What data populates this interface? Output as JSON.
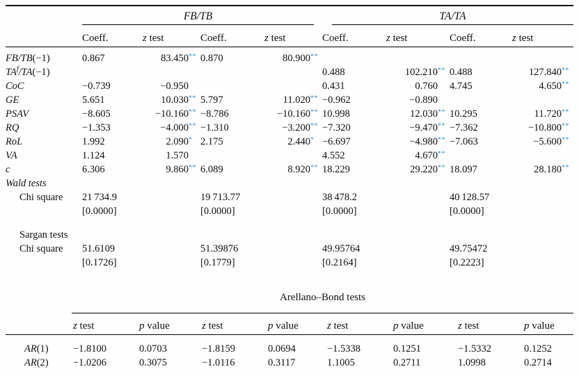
{
  "page": {
    "background": "#fefefe",
    "text_color": "#0e0e0e",
    "rule_color": "#000000",
    "star_color": "#3a92ce"
  },
  "main_table": {
    "group_headers": [
      "FB/TB",
      "TA/TA"
    ],
    "col_headers": [
      {
        "it": "",
        "t": "Coeff."
      },
      {
        "it": "z",
        "t": " test"
      },
      {
        "it": "",
        "t": "Coeff."
      },
      {
        "it": "z",
        "t": " test"
      },
      {
        "it": "",
        "t": "Coeff."
      },
      {
        "it": "z",
        "t": " test"
      },
      {
        "it": "",
        "t": "Coeff."
      },
      {
        "it": "z",
        "t": " test"
      }
    ],
    "rows": [
      {
        "type": "data",
        "label": [
          {
            "t": "FB/TB",
            "st": "i"
          },
          {
            "t": "(−1)",
            "st": "r"
          }
        ],
        "cells": [
          {
            "t": "0.867"
          },
          {
            "t": "83.450",
            "s": "**"
          },
          {
            "t": "0.870"
          },
          {
            "t": "80.900",
            "s": "**"
          },
          {},
          {},
          {},
          {}
        ]
      },
      {
        "type": "data",
        "label": [
          {
            "t": "TA",
            "st": "i"
          },
          {
            "t": "f",
            "st": "sup"
          },
          {
            "t": "/TA",
            "st": "i"
          },
          {
            "t": "(−1)",
            "st": "r"
          }
        ],
        "cells": [
          {},
          {},
          {},
          {},
          {
            "t": "0.488"
          },
          {
            "t": "102.210",
            "s": "**"
          },
          {
            "t": "0.488"
          },
          {
            "t": "127.840",
            "s": "**"
          }
        ]
      },
      {
        "type": "data",
        "label": [
          {
            "t": "CoC",
            "st": "i"
          }
        ],
        "cells": [
          {
            "t": "−0.739"
          },
          {
            "t": "−0.950"
          },
          {},
          {},
          {
            "t": "0.431"
          },
          {
            "t": "0.760"
          },
          {
            "t": "4.745"
          },
          {
            "t": "4.650",
            "s": "**"
          }
        ]
      },
      {
        "type": "data",
        "label": [
          {
            "t": "GE",
            "st": "i"
          }
        ],
        "cells": [
          {
            "t": "5.651"
          },
          {
            "t": "10.030",
            "s": "**"
          },
          {
            "t": "5.797"
          },
          {
            "t": "11.020",
            "s": "**"
          },
          {
            "t": "−0.962"
          },
          {
            "t": "−0.890"
          },
          {},
          {}
        ]
      },
      {
        "type": "data",
        "label": [
          {
            "t": "PSAV",
            "st": "i"
          }
        ],
        "cells": [
          {
            "t": "−8.605"
          },
          {
            "t": "−10.160",
            "s": "**"
          },
          {
            "t": "−8.786"
          },
          {
            "t": "−10.160",
            "s": "**"
          },
          {
            "t": "10.998"
          },
          {
            "t": "12.030",
            "s": "**"
          },
          {
            "t": "10.295"
          },
          {
            "t": "11.720",
            "s": "**"
          }
        ]
      },
      {
        "type": "data",
        "label": [
          {
            "t": "RQ",
            "st": "i"
          }
        ],
        "cells": [
          {
            "t": "−1.353"
          },
          {
            "t": "−4.000",
            "s": "**"
          },
          {
            "t": "−1.310"
          },
          {
            "t": "−3.200",
            "s": "**"
          },
          {
            "t": "−7.320"
          },
          {
            "t": "−9.470",
            "s": "**"
          },
          {
            "t": "−7.362"
          },
          {
            "t": "−10.800",
            "s": "**"
          }
        ]
      },
      {
        "type": "data",
        "label": [
          {
            "t": "RoL",
            "st": "i"
          }
        ],
        "cells": [
          {
            "t": "1.992"
          },
          {
            "t": "2.090",
            "s": "*"
          },
          {
            "t": "2.175"
          },
          {
            "t": "2.440",
            "s": "*"
          },
          {
            "t": "−6.697"
          },
          {
            "t": "−4.980",
            "s": "**"
          },
          {
            "t": "−7.063"
          },
          {
            "t": "−5.600",
            "s": "**"
          }
        ]
      },
      {
        "type": "data",
        "label": [
          {
            "t": "VA",
            "st": "i"
          }
        ],
        "cells": [
          {
            "t": "1.124"
          },
          {
            "t": "1.570"
          },
          {},
          {},
          {
            "t": "4.552"
          },
          {
            "t": "4.670",
            "s": "**"
          },
          {},
          {}
        ]
      },
      {
        "type": "data",
        "label": [
          {
            "t": "c",
            "st": "i"
          }
        ],
        "cells": [
          {
            "t": "6.306"
          },
          {
            "t": "9.860",
            "s": "**"
          },
          {
            "t": "6.089"
          },
          {
            "t": "8.920",
            "s": "**"
          },
          {
            "t": "18.229"
          },
          {
            "t": "29.220",
            "s": "**"
          },
          {
            "t": "18.097"
          },
          {
            "t": "28.180",
            "s": "**"
          }
        ]
      },
      {
        "type": "section",
        "label": [
          {
            "t": "Wald tests",
            "st": "i"
          }
        ]
      },
      {
        "type": "stat",
        "indent": true,
        "label": [
          {
            "t": "Chi square",
            "st": "r"
          }
        ],
        "cells": [
          {
            "t": "21 734.9"
          },
          {},
          {
            "t": "19 713.77"
          },
          {},
          {
            "t": "38 478.2"
          },
          {},
          {
            "t": "40 128.57"
          },
          {}
        ]
      },
      {
        "type": "bracket",
        "cells": [
          {
            "t": "[0.0000]"
          },
          {},
          {
            "t": "[0.0000]"
          },
          {},
          {
            "t": "[0.0000]"
          },
          {},
          {
            "t": "[0.0000]"
          },
          {}
        ]
      },
      {
        "type": "spacer"
      },
      {
        "type": "stat",
        "indent": true,
        "label": [
          {
            "t": "Sargan tests",
            "st": "r"
          }
        ]
      },
      {
        "type": "stat",
        "indent": true,
        "label": [
          {
            "t": "Chi square",
            "st": "r"
          }
        ],
        "cells": [
          {
            "t": "51.6109"
          },
          {},
          {
            "t": "51.39876"
          },
          {},
          {
            "t": "49.95764"
          },
          {},
          {
            "t": "49.75472"
          },
          {}
        ]
      },
      {
        "type": "bracket",
        "cells": [
          {
            "t": "[0.1726]"
          },
          {},
          {
            "t": "[0.1779]"
          },
          {},
          {
            "t": "[0.2164]"
          },
          {},
          {
            "t": "[0.2223]"
          },
          {}
        ]
      }
    ]
  },
  "ab_table": {
    "title": "Arellano–Bond tests",
    "col_headers": [
      {
        "it": "z",
        "t": " test"
      },
      {
        "it": "p",
        "t": " value"
      },
      {
        "it": "z",
        "t": " test"
      },
      {
        "it": "p",
        "t": " value"
      },
      {
        "it": "z",
        "t": " test"
      },
      {
        "it": "p",
        "t": " value"
      },
      {
        "it": "z",
        "t": " test"
      },
      {
        "it": "p",
        "t": " value"
      }
    ],
    "rows": [
      {
        "label": [
          {
            "t": "AR",
            "st": "i"
          },
          {
            "t": "(1)",
            "st": "r"
          }
        ],
        "cells": [
          "−1.8100",
          "0.0703",
          "−1.8159",
          "0.0694",
          "−1.5338",
          "0.1251",
          "−1.5332",
          "0.1252"
        ]
      },
      {
        "label": [
          {
            "t": "AR",
            "st": "i"
          },
          {
            "t": "(2)",
            "st": "r"
          }
        ],
        "cells": [
          "−1.0206",
          "0.3075",
          "−1.0116",
          "0.3117",
          "1.1005",
          "0.2711",
          "1.0998",
          "0.2714"
        ]
      }
    ]
  }
}
